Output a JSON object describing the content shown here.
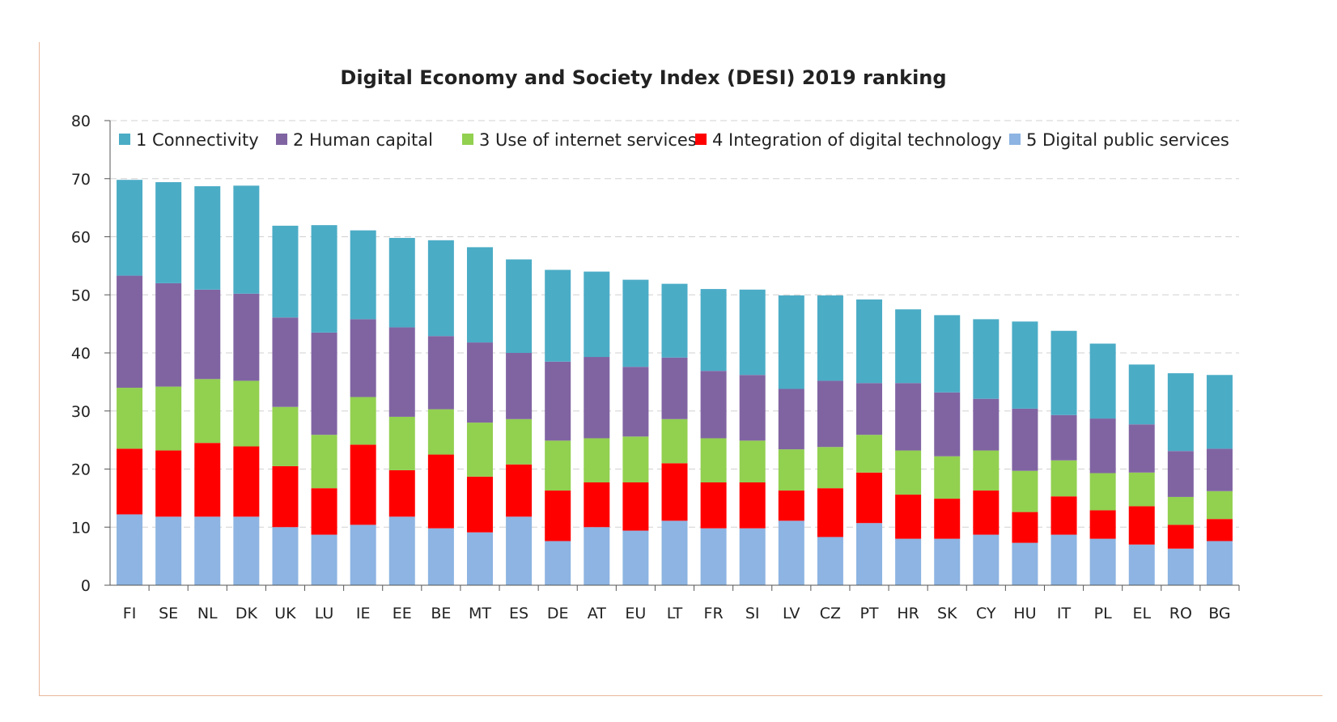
{
  "chart_data": {
    "type": "bar",
    "stacked": true,
    "title": "Digital Economy and Society Index (DESI) 2019 ranking",
    "xlabel": "",
    "ylabel": "",
    "ylim": [
      0,
      80
    ],
    "yticks": [
      0,
      10,
      20,
      30,
      40,
      50,
      60,
      70,
      80
    ],
    "grid": true,
    "legend_position": "top",
    "categories": [
      "FI",
      "SE",
      "NL",
      "DK",
      "UK",
      "LU",
      "IE",
      "EE",
      "BE",
      "MT",
      "ES",
      "DE",
      "AT",
      "EU",
      "LT",
      "FR",
      "SI",
      "LV",
      "CZ",
      "PT",
      "HR",
      "SK",
      "CY",
      "HU",
      "IT",
      "PL",
      "EL",
      "RO",
      "BG"
    ],
    "series": [
      {
        "name": "5 Digital public services",
        "color": "#8db4e2",
        "values": [
          12.2,
          11.8,
          11.8,
          11.8,
          10.0,
          8.7,
          10.4,
          11.8,
          9.8,
          9.1,
          11.8,
          7.6,
          10.0,
          9.4,
          11.1,
          9.8,
          9.8,
          11.1,
          8.3,
          10.7,
          8.0,
          8.0,
          8.7,
          7.3,
          8.7,
          8.0,
          7.0,
          6.3,
          7.6
        ]
      },
      {
        "name": "4 Integration of digital technology",
        "color": "#ff0000",
        "values": [
          11.3,
          11.4,
          12.7,
          12.1,
          10.5,
          8.0,
          13.8,
          8.0,
          12.7,
          9.6,
          9.0,
          8.7,
          7.7,
          8.3,
          9.9,
          7.9,
          7.9,
          5.2,
          8.4,
          8.7,
          7.6,
          6.9,
          7.6,
          5.3,
          6.6,
          4.9,
          6.6,
          4.1,
          3.8
        ]
      },
      {
        "name": "3 Use of internet services",
        "color": "#92d050",
        "values": [
          10.5,
          11.0,
          11.0,
          11.3,
          10.2,
          9.2,
          8.2,
          9.2,
          7.8,
          9.3,
          7.8,
          8.6,
          7.6,
          7.9,
          7.6,
          7.6,
          7.2,
          7.1,
          7.1,
          6.5,
          7.6,
          7.3,
          6.9,
          7.1,
          6.2,
          6.4,
          5.8,
          4.8,
          4.8
        ]
      },
      {
        "name": "2 Human capital",
        "color": "#8064a2",
        "values": [
          19.3,
          17.8,
          15.4,
          15.0,
          15.4,
          17.6,
          13.4,
          15.4,
          12.6,
          13.8,
          11.4,
          13.6,
          14.0,
          12.0,
          10.6,
          11.6,
          11.3,
          10.4,
          11.4,
          8.9,
          11.6,
          11.0,
          8.9,
          10.7,
          7.8,
          9.4,
          8.3,
          7.9,
          7.3
        ]
      },
      {
        "name": "1 Connectivity",
        "color": "#4bacc6",
        "values": [
          16.5,
          17.4,
          17.8,
          18.6,
          15.8,
          18.5,
          15.3,
          15.4,
          16.5,
          16.4,
          16.1,
          15.8,
          14.7,
          15.0,
          12.7,
          14.1,
          14.7,
          16.1,
          14.7,
          14.4,
          12.7,
          13.3,
          13.7,
          15.0,
          14.5,
          12.9,
          10.3,
          13.4,
          12.7
        ]
      }
    ],
    "legend_order": [
      "1 Connectivity",
      "2 Human capital",
      "3 Use of internet services",
      "4 Integration of digital technology",
      "5 Digital public services"
    ]
  }
}
